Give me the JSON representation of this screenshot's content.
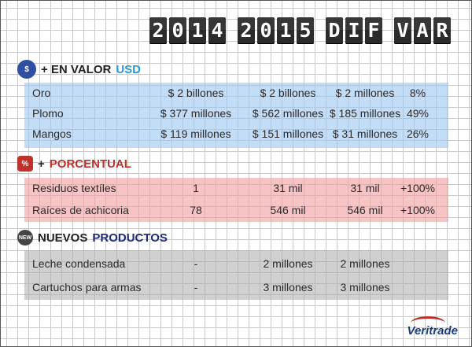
{
  "header": {
    "y1": "2014",
    "y2": "2015",
    "dif": "DIF",
    "var": "VAR"
  },
  "sections": {
    "usd": {
      "icon_text": "$",
      "title_a": "+ EN VALOR",
      "title_b": "USD",
      "rows": [
        [
          "Oro",
          "$ 2 billones",
          "$ 2 billones",
          "$ 2 millones",
          "8%"
        ],
        [
          "Plomo",
          "$ 377 millones",
          "$ 562 millones",
          "$ 185 millones",
          "49%"
        ],
        [
          "Mangos",
          "$ 119 millones",
          "$ 151 millones",
          "$ 31 millones",
          "26%"
        ]
      ]
    },
    "pct": {
      "icon_text": "%",
      "title_a": "+",
      "title_b": "PORCENTUAL",
      "rows": [
        [
          "Residuos textíles",
          "1",
          "31 mil",
          "31 mil",
          "+100%"
        ],
        [
          "Raíces de achicoria",
          "78",
          "546 mil",
          "546 mil",
          "+100%"
        ]
      ]
    },
    "new": {
      "icon_text": "NEW",
      "title_a": "NUEVOS",
      "title_b": "PRODUCTOS",
      "rows": [
        [
          "Leche condensada",
          "-",
          "2 millones",
          "2 millones",
          ""
        ],
        [
          "Cartuchos para armas",
          "-",
          "3 millones",
          "3 millones",
          ""
        ]
      ]
    }
  },
  "logo": {
    "text": "Veritrade"
  },
  "colors": {
    "usd_band": "#a0c8f0",
    "pct_band": "#f0a0a0",
    "new_band": "#aaaaaa",
    "accent_blue": "#2a9ad8",
    "accent_red": "#c0312b"
  }
}
